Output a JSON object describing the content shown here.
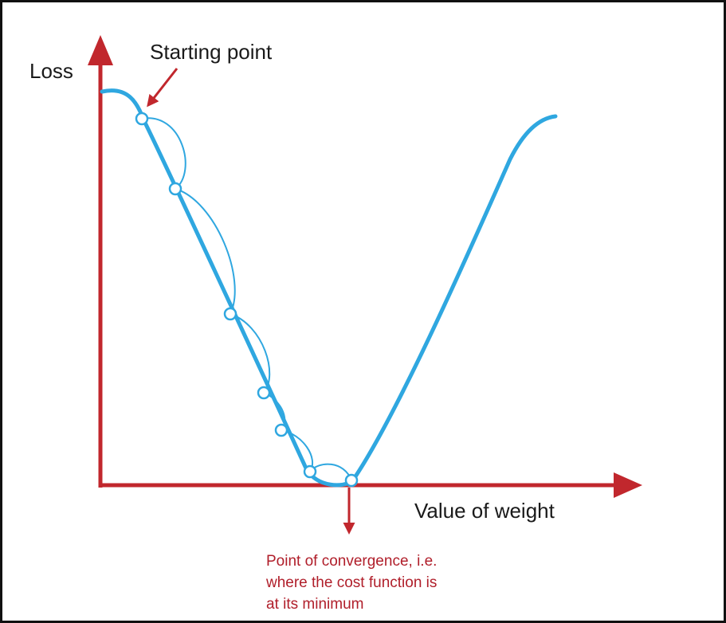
{
  "diagram": {
    "y_axis_label": "Loss",
    "x_axis_label": "Value of weight",
    "start_annotation": "Starting point",
    "convergence_annotation": [
      "Point of convergence, i.e.",
      "where the cost function is",
      "at its minimum"
    ],
    "steps_shown": 7
  },
  "colors": {
    "axis": "#c1272d",
    "curve": "#2fa7e0",
    "annotation": "#b01e2a",
    "text": "#1a1a1a",
    "border": "#111111"
  }
}
